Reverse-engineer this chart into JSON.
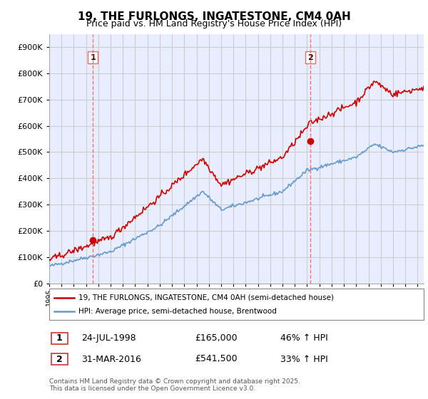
{
  "title": "19, THE FURLONGS, INGATESTONE, CM4 0AH",
  "subtitle": "Price paid vs. HM Land Registry's House Price Index (HPI)",
  "legend_line1": "19, THE FURLONGS, INGATESTONE, CM4 0AH (semi-detached house)",
  "legend_line2": "HPI: Average price, semi-detached house, Brentwood",
  "transaction1_label": "1",
  "transaction1_date": "24-JUL-1998",
  "transaction1_price": "£165,000",
  "transaction1_hpi": "46% ↑ HPI",
  "transaction2_label": "2",
  "transaction2_date": "31-MAR-2016",
  "transaction2_price": "£541,500",
  "transaction2_hpi": "33% ↑ HPI",
  "footer": "Contains HM Land Registry data © Crown copyright and database right 2025.\nThis data is licensed under the Open Government Licence v3.0.",
  "red_color": "#cc0000",
  "blue_color": "#6699cc",
  "dashed_red": "#ff6666",
  "background_color": "#ffffff",
  "grid_color": "#cccccc",
  "chart_bg": "#e8eeff",
  "ylim": [
    0,
    950000
  ],
  "yticks": [
    0,
    100000,
    200000,
    300000,
    400000,
    500000,
    600000,
    700000,
    800000,
    900000
  ],
  "ytick_labels": [
    "£0",
    "£100K",
    "£200K",
    "£300K",
    "£400K",
    "£500K",
    "£600K",
    "£700K",
    "£800K",
    "£900K"
  ],
  "transaction1_year": 1998.56,
  "transaction1_value": 165000,
  "transaction2_year": 2016.25,
  "transaction2_value": 541500
}
